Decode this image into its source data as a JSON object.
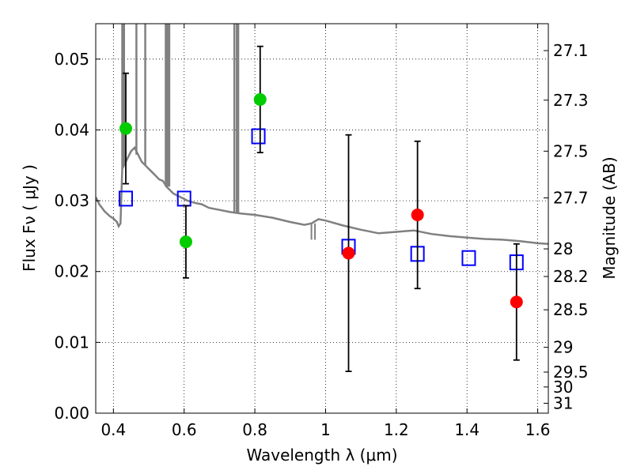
{
  "chart_data": {
    "type": "scatter",
    "xlabel": "Wavelength  λ (μm)",
    "ylabel": "Flux  Fν  ( μJy )",
    "y2label": "Magnitude (AB)",
    "xlim": [
      0.35,
      1.63
    ],
    "ylim": [
      0.0,
      0.055
    ],
    "grid": true,
    "x_ticks": [
      0.4,
      0.6,
      0.8,
      1.0,
      1.2,
      1.4,
      1.6
    ],
    "x_tick_labels": [
      "0.4",
      "0.6",
      "0.8",
      "1",
      "1.2",
      "1.4",
      "1.6"
    ],
    "y_ticks": [
      0.0,
      0.01,
      0.02,
      0.03,
      0.04,
      0.05
    ],
    "y_tick_labels": [
      "0.00",
      "0.01",
      "0.02",
      "0.03",
      "0.04",
      "0.05"
    ],
    "y2_ticks": [
      {
        "label": "27.1",
        "flux": 0.0512
      },
      {
        "label": "27.3",
        "flux": 0.0442
      },
      {
        "label": "27.5",
        "flux": 0.037
      },
      {
        "label": "27.7",
        "flux": 0.0304
      },
      {
        "label": "28",
        "flux": 0.0232
      },
      {
        "label": "28.2",
        "flux": 0.0193
      },
      {
        "label": "28.5",
        "flux": 0.0146
      },
      {
        "label": "29",
        "flux": 0.0093
      },
      {
        "label": "29.5",
        "flux": 0.0058
      },
      {
        "label": "30",
        "flux": 0.0037
      },
      {
        "label": "31",
        "flux": 0.0014
      }
    ],
    "series": [
      {
        "kind": "model-spectrum",
        "color": "#808080",
        "x": [
          0.35,
          0.36,
          0.375,
          0.39,
          0.4,
          0.41,
          0.415,
          0.42,
          0.425,
          0.43,
          0.44,
          0.45,
          0.46,
          0.47,
          0.48,
          0.49,
          0.5,
          0.51,
          0.52,
          0.53,
          0.54,
          0.55,
          0.57,
          0.59,
          0.61,
          0.63,
          0.65,
          0.67,
          0.7,
          0.73,
          0.76,
          0.8,
          0.85,
          0.9,
          0.94,
          0.96,
          0.98,
          1.0,
          1.05,
          1.1,
          1.15,
          1.2,
          1.25,
          1.3,
          1.35,
          1.4,
          1.45,
          1.5,
          1.55,
          1.6,
          1.63
        ],
        "y": [
          0.0305,
          0.0295,
          0.0285,
          0.0278,
          0.0275,
          0.027,
          0.0264,
          0.0268,
          0.0345,
          0.035,
          0.036,
          0.037,
          0.0375,
          0.0365,
          0.0355,
          0.035,
          0.0345,
          0.034,
          0.0335,
          0.033,
          0.0328,
          0.032,
          0.031,
          0.0305,
          0.03,
          0.0297,
          0.0295,
          0.029,
          0.0287,
          0.0284,
          0.0282,
          0.028,
          0.0276,
          0.027,
          0.0266,
          0.0268,
          0.0274,
          0.0272,
          0.0265,
          0.0259,
          0.0254,
          0.0256,
          0.0258,
          0.0253,
          0.025,
          0.0248,
          0.0246,
          0.0245,
          0.0243,
          0.024,
          0.0239
        ]
      },
      {
        "kind": "model-bandpass",
        "marker": "open-square",
        "color": "#0000ff",
        "x": [
          0.435,
          0.6,
          0.81,
          1.065,
          1.26,
          1.405,
          1.54
        ],
        "y": [
          0.0303,
          0.0303,
          0.0391,
          0.0235,
          0.0225,
          0.0219,
          0.0213
        ]
      },
      {
        "kind": "detection",
        "marker": "filled-circle",
        "color": "#00cc00",
        "x": [
          0.435,
          0.605,
          0.815
        ],
        "y": [
          0.0402,
          0.0242,
          0.0443
        ],
        "err": [
          0.0078,
          0.0051,
          0.0075
        ]
      },
      {
        "kind": "non-detection",
        "marker": "filled-circle",
        "color": "#ff0000",
        "x": [
          1.065,
          1.26,
          1.54
        ],
        "y": [
          0.0226,
          0.028,
          0.0157
        ],
        "err": [
          0.0167,
          0.0104,
          0.0082
        ]
      }
    ]
  }
}
